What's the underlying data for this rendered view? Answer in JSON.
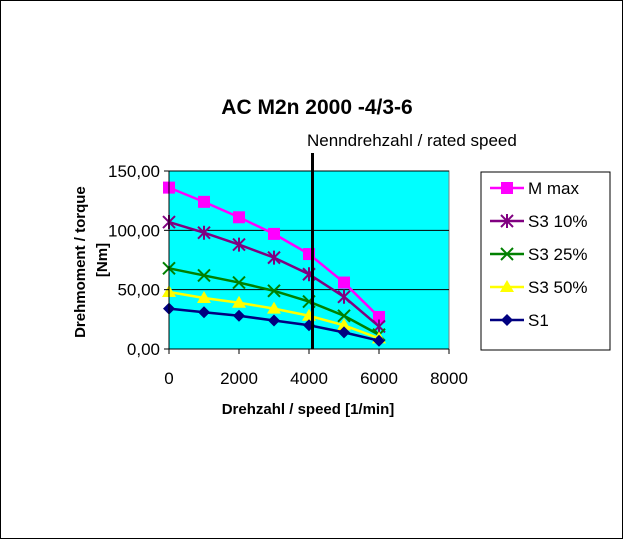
{
  "chart_data": {
    "type": "line",
    "title": "AC M2n 2000 -4/3-6",
    "xlabel": "Drehzahl / speed [1/min]",
    "ylabel": [
      "Drehmoment / torque",
      "[Nm]"
    ],
    "xlim": [
      0,
      8000
    ],
    "ylim": [
      0,
      150
    ],
    "x_ticks": [
      "0",
      "2000",
      "4000",
      "6000",
      "8000"
    ],
    "y_ticks": [
      "0,00",
      "50,00",
      "100,00",
      "150,00"
    ],
    "plot_background": "#00ffff",
    "grid": "horizontal",
    "legend_position": "right",
    "x": [
      0,
      1000,
      2000,
      3000,
      4000,
      5000,
      6000
    ],
    "series": [
      {
        "name": "M max",
        "color": "#ff00ff",
        "marker": "square",
        "values": [
          136,
          124,
          111,
          97,
          80,
          56,
          27
        ]
      },
      {
        "name": "S3 10%",
        "color": "#800080",
        "marker": "asterisk",
        "values": [
          107,
          98,
          88,
          77,
          63,
          44,
          19
        ]
      },
      {
        "name": "S3 25%",
        "color": "#008000",
        "marker": "x",
        "values": [
          68,
          62,
          56,
          49,
          40,
          28,
          12
        ]
      },
      {
        "name": "S3 50%",
        "color": "#ffff00",
        "marker": "triangle",
        "values": [
          48,
          43,
          39,
          34,
          28,
          20,
          9
        ]
      },
      {
        "name": "S1",
        "color": "#000080",
        "marker": "diamond",
        "values": [
          34,
          31,
          28,
          24,
          20,
          14,
          7
        ]
      }
    ],
    "annotations": [
      {
        "text": "Nenndrehzahl / rated speed",
        "x": 4100
      }
    ]
  }
}
